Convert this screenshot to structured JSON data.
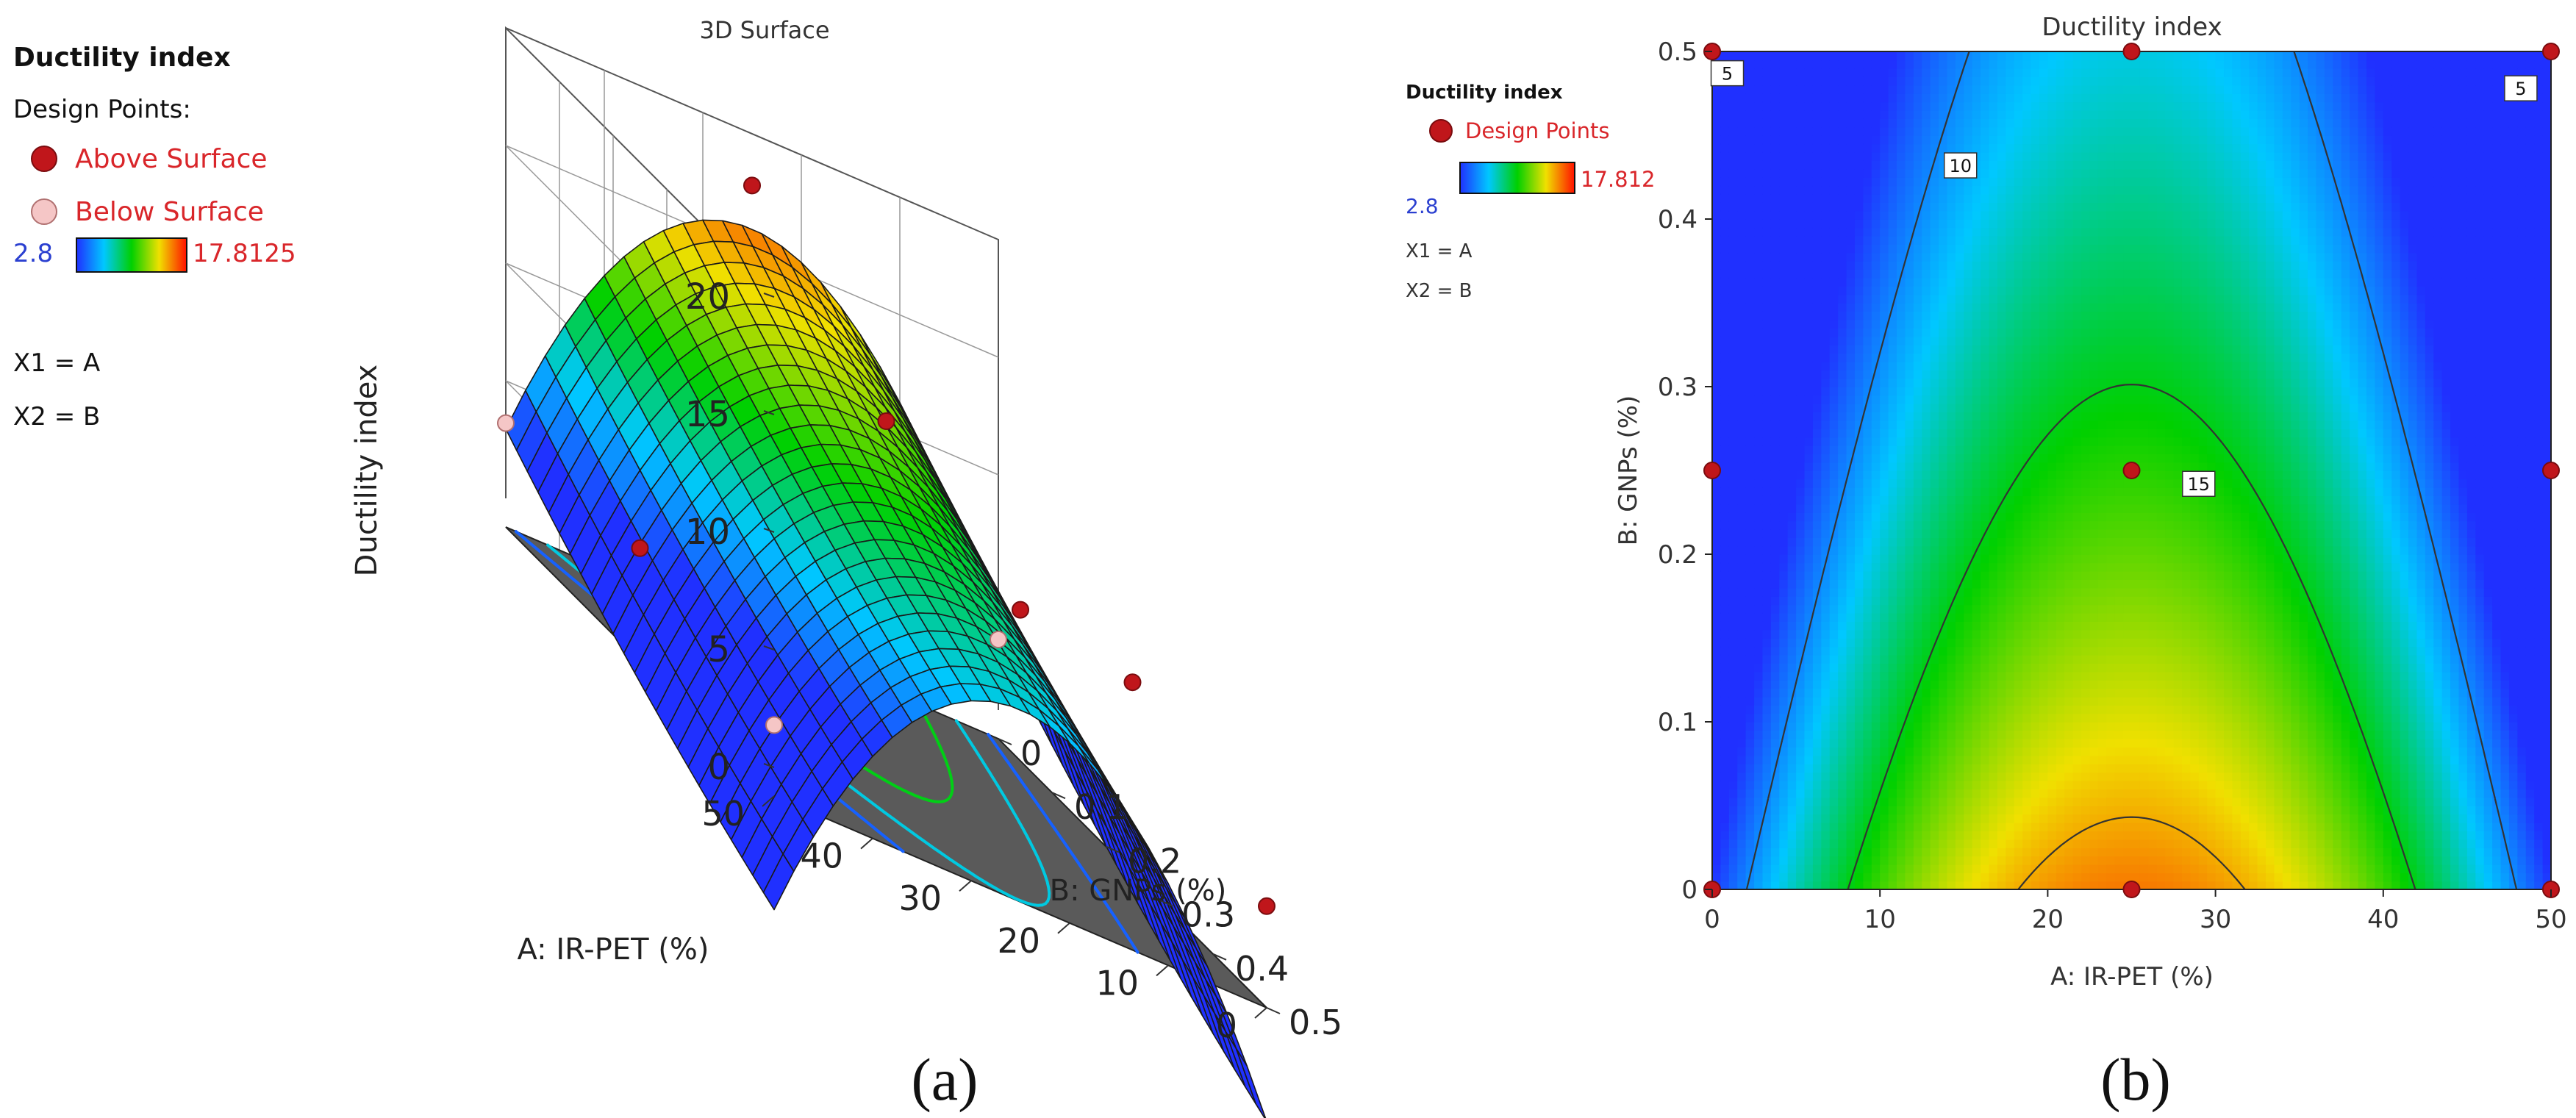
{
  "legend_a": {
    "title": "Ductility index",
    "design_points_label": "Design Points:",
    "above_label": "Above Surface",
    "below_label": "Below Surface",
    "min_label": "2.8",
    "max_label": "17.8125",
    "x1": "X1 = A",
    "x2": "X2 = B"
  },
  "legend_b": {
    "title": "Ductility index",
    "design_points_label": "Design Points",
    "min_label": "2.8",
    "max_label": "17.812",
    "x1": "X1 = A",
    "x2": "X2 = B"
  },
  "captions": {
    "a": "(a)",
    "b": "(b)"
  },
  "colors": {
    "design_point": "#c0161b",
    "below_point": "#f5c6c6",
    "legend_text": "#d9262a",
    "legend_min_text": "#2a3fd0",
    "contour_line": "#333333",
    "floor": "#5a5a5a"
  },
  "chart_data": [
    {
      "type": "surface3d",
      "title": "3D Surface",
      "zlabel": "Ductility index",
      "xlabel": "A: IR-PET (%)",
      "ylabel": "B: GNPs (%)",
      "x_ticks": [
        "0",
        "10",
        "20",
        "30",
        "40",
        "50"
      ],
      "y_ticks": [
        "0",
        "0.1",
        "0.2",
        "0.3",
        "0.4",
        "0.5"
      ],
      "z_ticks": [
        "0",
        "5",
        "10",
        "15",
        "20"
      ],
      "xlim": [
        0,
        50
      ],
      "ylim": [
        0,
        0.5
      ],
      "zlim": [
        0,
        20
      ],
      "color_range": [
        2.8,
        17.8125
      ],
      "grid_divisions": 25,
      "model": {
        "const": 15.95,
        "a_lin": 0,
        "a_quad": -13.0,
        "b_lin": -11.2,
        "b_quad": 2.2,
        "ab": 0
      },
      "floor_contour_levels": [
        4,
        7,
        10,
        13,
        15.5
      ],
      "design_points": [
        {
          "a": 0,
          "b": 0,
          "z": 3.0,
          "pos": "below"
        },
        {
          "a": 25,
          "b": 0,
          "z": 17.8,
          "pos": "above"
        },
        {
          "a": 50,
          "b": 0,
          "z": 3.2,
          "pos": "below"
        },
        {
          "a": 0,
          "b": 0.25,
          "z": 6.9,
          "pos": "above"
        },
        {
          "a": 25,
          "b": 0.25,
          "z": 13.5,
          "pos": "above"
        },
        {
          "a": 50,
          "b": 0.25,
          "z": 3.6,
          "pos": "above"
        },
        {
          "a": 0,
          "b": 0.5,
          "z": 3.1,
          "pos": "above"
        },
        {
          "a": 25,
          "b": 0.5,
          "z": 11.2,
          "pos": "above"
        },
        {
          "a": 50,
          "b": 0.5,
          "z": 1.8,
          "pos": "below"
        }
      ]
    },
    {
      "type": "contour",
      "title": "Ductility index",
      "xlabel": "A: IR-PET (%)",
      "ylabel": "B: GNPs (%)",
      "x_ticks": [
        0,
        10,
        20,
        30,
        40,
        50
      ],
      "y_ticks": [
        0,
        0.1,
        0.2,
        0.3,
        0.4,
        0.5
      ],
      "xlim": [
        0,
        50
      ],
      "ylim": [
        0,
        0.5
      ],
      "color_range": [
        2.8,
        17.8125
      ],
      "contour_levels": [
        5,
        10,
        15
      ],
      "contour_labels": [
        "5",
        "5",
        "10",
        "15"
      ],
      "design_points": [
        {
          "a": 0,
          "b": 0
        },
        {
          "a": 25,
          "b": 0
        },
        {
          "a": 50,
          "b": 0
        },
        {
          "a": 0,
          "b": 0.25
        },
        {
          "a": 25,
          "b": 0.25
        },
        {
          "a": 50,
          "b": 0.25
        },
        {
          "a": 0,
          "b": 0.5
        },
        {
          "a": 25,
          "b": 0.5
        },
        {
          "a": 50,
          "b": 0.5
        }
      ]
    }
  ]
}
